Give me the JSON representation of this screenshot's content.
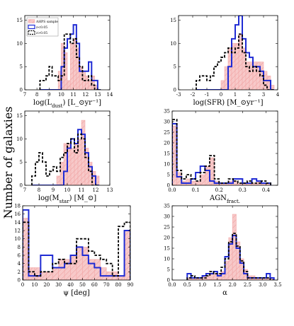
{
  "figure": {
    "ylabel": "Number of galaxies"
  },
  "chart_data": [
    {
      "type": "histogram",
      "xlabel": "log(L_dust) [L_⊙yr⁻¹]",
      "xlim": [
        7,
        14
      ],
      "ylim": [
        0,
        16
      ],
      "xticks": [
        7,
        8,
        9,
        10,
        11,
        12,
        13,
        14
      ],
      "yticks": [
        0,
        5,
        10,
        15
      ],
      "legend": {
        "position": "top-left",
        "entries": [
          "AHPS sample",
          "z<0.05",
          "z>0.05"
        ]
      },
      "bin_edges": [
        8.25,
        8.5,
        8.75,
        9.0,
        9.25,
        9.5,
        9.75,
        10.0,
        10.25,
        10.5,
        10.75,
        11.0,
        11.25,
        11.5,
        11.75,
        12.0,
        12.25,
        12.5,
        12.75,
        13.0,
        13.25
      ],
      "series": [
        {
          "name": "AHPS sample",
          "style": "fill",
          "color": "#f4a6a6",
          "values": [
            0,
            0,
            0,
            0,
            0,
            0,
            4,
            10,
            8,
            2,
            10,
            11,
            9,
            5,
            4,
            3,
            2,
            3,
            1,
            0
          ]
        },
        {
          "name": "z<0.05",
          "style": "solid",
          "color": "#1f2bd4",
          "values": [
            0,
            0,
            0,
            0,
            0,
            0,
            0,
            5,
            9,
            11,
            12,
            14,
            10,
            4,
            4,
            4,
            6,
            2,
            2,
            0
          ]
        },
        {
          "name": "z>0.05",
          "style": "dashed",
          "color": "#000000",
          "values": [
            2,
            2,
            3,
            5,
            3,
            3,
            2,
            3,
            12,
            12,
            10,
            11,
            7,
            5,
            2,
            2,
            3,
            1,
            0,
            0
          ]
        }
      ]
    },
    {
      "type": "histogram",
      "xlabel": "log(SFR) [M_⊙yr⁻¹]",
      "xlim": [
        -3,
        4
      ],
      "ylim": [
        0,
        16
      ],
      "xticks": [
        -3,
        -2,
        -1,
        0,
        1,
        2,
        3,
        4
      ],
      "yticks": [
        0,
        5,
        10,
        15
      ],
      "bin_edges": [
        -1.75,
        -1.5,
        -1.25,
        -1.0,
        -0.75,
        -0.5,
        -0.25,
        0.0,
        0.25,
        0.5,
        0.75,
        1.0,
        1.25,
        1.5,
        1.75,
        2.0,
        2.25,
        2.5,
        2.75,
        3.0,
        3.25,
        3.5,
        3.75
      ],
      "series": [
        {
          "name": "AHPS sample",
          "style": "fill",
          "color": "#f4a6a6",
          "values": [
            0,
            0,
            0,
            0,
            0,
            0,
            0,
            2,
            5,
            9,
            10,
            10,
            12,
            9,
            6,
            6,
            6,
            6,
            6,
            4,
            3,
            1
          ]
        },
        {
          "name": "z<0.05",
          "style": "solid",
          "color": "#1f2bd4",
          "values": [
            0,
            0,
            0,
            0,
            0,
            0,
            0,
            0,
            0,
            5,
            11,
            14,
            16,
            11,
            8,
            7,
            5,
            5,
            4,
            2,
            2,
            0
          ]
        },
        {
          "name": "z>0.05",
          "style": "dashed",
          "color": "#000000",
          "values": [
            2,
            3,
            3,
            2,
            3,
            5,
            6,
            7,
            8,
            9,
            8,
            9,
            12,
            8,
            5,
            4,
            5,
            4,
            3,
            1,
            0,
            0
          ]
        }
      ]
    },
    {
      "type": "histogram",
      "xlabel": "log(M_star) [M_⊙]",
      "xlim": [
        7,
        13
      ],
      "ylim": [
        0,
        16
      ],
      "xticks": [
        7,
        8,
        9,
        10,
        11,
        12,
        13
      ],
      "yticks": [
        0,
        5,
        10,
        15
      ],
      "bin_edges": [
        7.5,
        7.75,
        8.0,
        8.25,
        8.5,
        8.75,
        9.0,
        9.25,
        9.5,
        9.75,
        10.0,
        10.25,
        10.5,
        10.75,
        11.0,
        11.25,
        11.5,
        11.75,
        12.0,
        12.25
      ],
      "series": [
        {
          "name": "AHPS sample",
          "style": "fill",
          "color": "#f4a6a6",
          "values": [
            0,
            0,
            0,
            0,
            0,
            0,
            0,
            2,
            5,
            9,
            9,
            8,
            9,
            10,
            14,
            8,
            5,
            3,
            2
          ]
        },
        {
          "name": "z<0.05",
          "style": "solid",
          "color": "#1f2bd4",
          "values": [
            0,
            0,
            0,
            0,
            0,
            0,
            0,
            0,
            0,
            3,
            8,
            10,
            9,
            12,
            11,
            7,
            4,
            2,
            0
          ]
        },
        {
          "name": "z>0.05",
          "style": "dashed",
          "color": "#000000",
          "values": [
            2,
            5,
            7,
            5,
            2,
            3,
            4,
            3,
            6,
            7,
            9,
            10,
            7,
            11,
            10,
            6,
            3,
            0,
            0
          ]
        }
      ]
    },
    {
      "type": "histogram",
      "xlabel": "AGN_fract.",
      "xlim": [
        0,
        0.45
      ],
      "ylim": [
        0,
        35
      ],
      "xticks": [
        0.0,
        0.1,
        0.2,
        0.3,
        0.4
      ],
      "yticks": [
        0,
        5,
        10,
        15,
        20,
        25,
        30,
        35
      ],
      "bin_edges": [
        0.0,
        0.02,
        0.04,
        0.06,
        0.08,
        0.1,
        0.12,
        0.14,
        0.16,
        0.18,
        0.2,
        0.22,
        0.24,
        0.26,
        0.28,
        0.3,
        0.32,
        0.34,
        0.36,
        0.38,
        0.4,
        0.42
      ],
      "series": [
        {
          "name": "AHPS sample",
          "style": "fill",
          "color": "#f4a6a6",
          "values": [
            28,
            6,
            2,
            3,
            2,
            2,
            5,
            9,
            13,
            2,
            1,
            1,
            2,
            2,
            1,
            1,
            1,
            1,
            2,
            1,
            1
          ]
        },
        {
          "name": "z<0.05",
          "style": "solid",
          "color": "#1f2bd4",
          "values": [
            29,
            4,
            1,
            1,
            3,
            6,
            9,
            7,
            2,
            1,
            1,
            1,
            1,
            3,
            3,
            1,
            1,
            3,
            2,
            1,
            1
          ]
        },
        {
          "name": "z>0.05",
          "style": "dashed",
          "color": "#000000",
          "values": [
            31,
            7,
            3,
            5,
            3,
            2,
            6,
            9,
            14,
            3,
            1,
            1,
            3,
            2,
            1,
            1,
            2,
            1,
            1,
            2,
            1
          ]
        }
      ]
    },
    {
      "type": "histogram",
      "xlabel": "ψ [deg]",
      "xlim": [
        0,
        90
      ],
      "ylim": [
        0,
        18
      ],
      "xticks": [
        0,
        10,
        20,
        30,
        40,
        50,
        60,
        70,
        80,
        90
      ],
      "yticks": [
        0,
        2,
        4,
        6,
        8,
        10,
        12,
        14,
        16,
        18
      ],
      "bin_edges": [
        0,
        5,
        10,
        15,
        20,
        25,
        30,
        35,
        40,
        45,
        50,
        55,
        60,
        65,
        70,
        75,
        80,
        85,
        90
      ],
      "series": [
        {
          "name": "AHPS sample",
          "style": "fill",
          "color": "#f4a6a6",
          "values": [
            15,
            3,
            3,
            2,
            2,
            3,
            5,
            5,
            6,
            8,
            8,
            5,
            5,
            3,
            2,
            2,
            1,
            12
          ]
        },
        {
          "name": "z<0.05",
          "style": "solid",
          "color": "#1f2bd4",
          "values": [
            17,
            1,
            1,
            6,
            6,
            3,
            3,
            4,
            6,
            8,
            6,
            4,
            3,
            1,
            1,
            1,
            1,
            12
          ]
        },
        {
          "name": "z>0.05",
          "style": "dashed",
          "color": "#000000",
          "values": [
            14,
            2,
            1,
            2,
            2,
            4,
            5,
            4,
            4,
            10,
            10,
            7,
            6,
            5,
            4,
            1,
            13,
            14
          ]
        }
      ]
    },
    {
      "type": "histogram",
      "xlabel": "α",
      "xlim": [
        0,
        3.5
      ],
      "ylim": [
        0,
        35
      ],
      "xticks": [
        0.0,
        0.5,
        1.0,
        1.5,
        2.0,
        2.5,
        3.0,
        3.5
      ],
      "yticks": [
        0,
        5,
        10,
        15,
        20,
        25,
        30,
        35
      ],
      "bin_edges": [
        0.5,
        0.625,
        0.75,
        0.875,
        1.0,
        1.125,
        1.25,
        1.375,
        1.5,
        1.625,
        1.75,
        1.875,
        2.0,
        2.125,
        2.25,
        2.375,
        2.5,
        2.625,
        2.75,
        2.875,
        3.0,
        3.125,
        3.25,
        3.375
      ],
      "series": [
        {
          "name": "AHPS sample",
          "style": "fill",
          "color": "#f4a6a6",
          "values": [
            1,
            1,
            1,
            1,
            2,
            2,
            3,
            3,
            3,
            4,
            9,
            20,
            31,
            18,
            10,
            5,
            2,
            2,
            1,
            1,
            1,
            1,
            1
          ]
        },
        {
          "name": "z<0.05",
          "style": "solid",
          "color": "#1f2bd4",
          "values": [
            3,
            1,
            1,
            1,
            2,
            3,
            3,
            4,
            2,
            3,
            11,
            17,
            21,
            15,
            8,
            3,
            1,
            1,
            1,
            1,
            1,
            3,
            1
          ]
        },
        {
          "name": "z>0.05",
          "style": "dashed",
          "color": "#000000",
          "values": [
            1,
            2,
            1,
            1,
            1,
            2,
            4,
            3,
            3,
            6,
            10,
            18,
            22,
            16,
            9,
            4,
            1,
            1,
            1,
            1,
            1,
            1,
            0
          ]
        }
      ]
    }
  ]
}
